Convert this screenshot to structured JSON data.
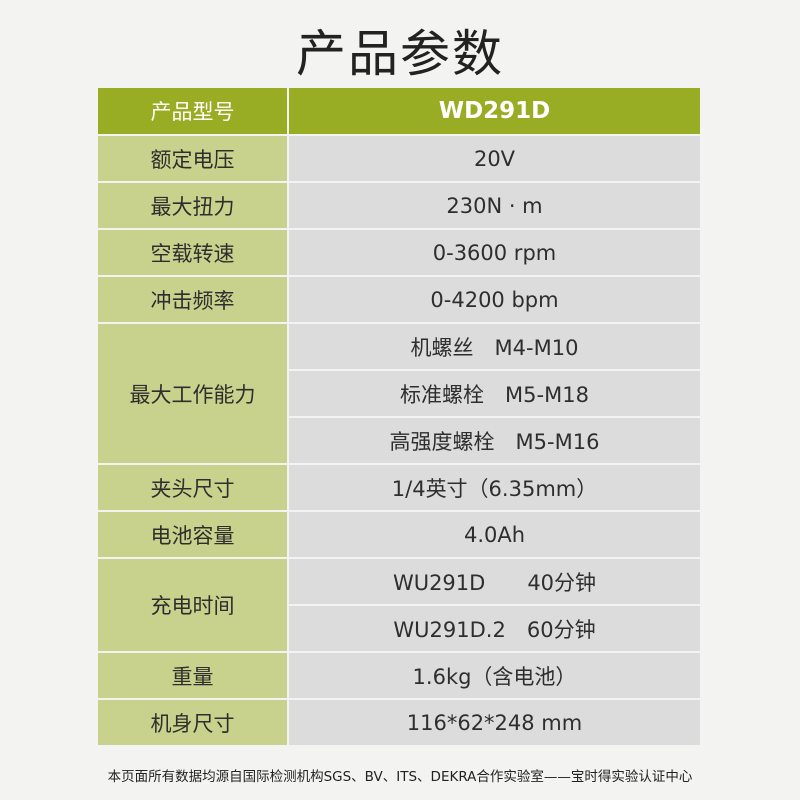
{
  "title": "产品参数",
  "header": {
    "label": "产品型号",
    "value": "WD291D"
  },
  "rows": [
    {
      "label": "额定电压",
      "values": [
        "20V"
      ]
    },
    {
      "label": "最大扭力",
      "values": [
        "230N · m"
      ]
    },
    {
      "label": "空载转速",
      "values": [
        "0-3600 rpm"
      ]
    },
    {
      "label": "冲击频率",
      "values": [
        "0-4200 bpm"
      ]
    },
    {
      "label": "最大工作能力",
      "values": [
        "机螺丝　M4-M10",
        "标准螺栓　M5-M18",
        "高强度螺栓　M5-M16"
      ]
    },
    {
      "label": "夹头尺寸",
      "values": [
        "1/4英寸（6.35mm）"
      ]
    },
    {
      "label": "电池容量",
      "values": [
        "4.0Ah"
      ]
    },
    {
      "label": "充电时间",
      "values": [
        "WU291D　　40分钟",
        "WU291D.2　60分钟"
      ]
    },
    {
      "label": "重量",
      "values": [
        "1.6kg（含电池）"
      ]
    },
    {
      "label": "机身尺寸",
      "values": [
        "116*62*248 mm"
      ]
    }
  ],
  "footer": "本页面所有数据均源自国际检测机构SGS、BV、ITS、DEKRA合作实验室——宝时得实验认证中心",
  "colors": {
    "header": "#99ad24",
    "label_cell": "#c9d28c",
    "value_cell": "#dcdcdc"
  }
}
